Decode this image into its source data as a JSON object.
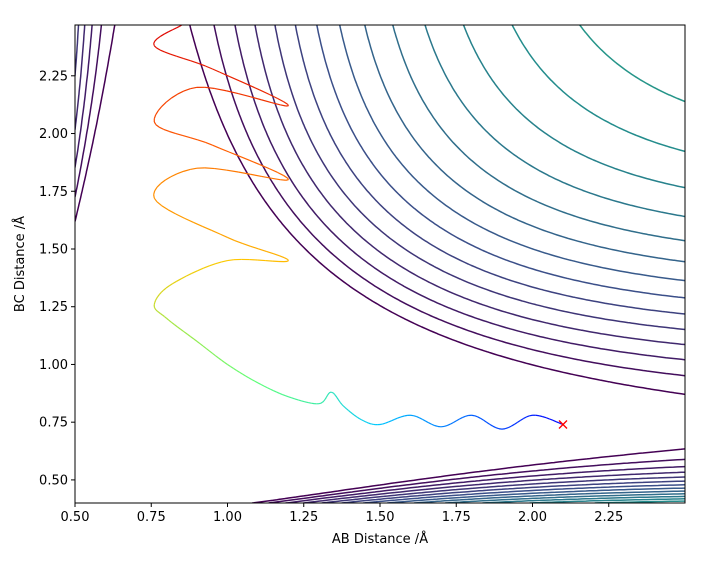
{
  "chart_data": {
    "type": "line",
    "title": "",
    "xlabel": "AB Distance /Å",
    "ylabel": "BC Distance /Å",
    "xlim": [
      0.5,
      2.5
    ],
    "ylim": [
      0.4,
      2.47
    ],
    "xticks": [
      "0.50",
      "0.75",
      "1.00",
      "1.25",
      "1.50",
      "1.75",
      "2.00",
      "2.25"
    ],
    "yticks": [
      "0.50",
      "0.75",
      "1.00",
      "1.25",
      "1.50",
      "1.75",
      "2.00",
      "2.25"
    ],
    "grid": false,
    "legend": "none",
    "contour_levels": 26,
    "colormap": [
      "#440154",
      "#3b528b",
      "#21918c",
      "#5ec962",
      "#fde725"
    ],
    "trajectory": {
      "start": [
        2.1,
        0.74
      ],
      "marker": "x",
      "marker_color": "#ff0000",
      "color_start": "#ff0000",
      "color_end": "#0000ff",
      "points": [
        [
          2.1,
          0.74
        ],
        [
          2.0,
          0.78
        ],
        [
          1.9,
          0.72
        ],
        [
          1.8,
          0.78
        ],
        [
          1.7,
          0.73
        ],
        [
          1.6,
          0.78
        ],
        [
          1.5,
          0.74
        ],
        [
          1.44,
          0.76
        ],
        [
          1.38,
          0.82
        ],
        [
          1.34,
          0.88
        ],
        [
          1.3,
          0.83
        ],
        [
          1.2,
          0.86
        ],
        [
          1.1,
          0.92
        ],
        [
          1.0,
          1.0
        ],
        [
          0.9,
          1.1
        ],
        [
          0.8,
          1.2
        ],
        [
          0.76,
          1.26
        ],
        [
          0.82,
          1.35
        ],
        [
          1.0,
          1.45
        ],
        [
          1.2,
          1.45
        ],
        [
          1.0,
          1.55
        ],
        [
          0.76,
          1.72
        ],
        [
          0.9,
          1.85
        ],
        [
          1.2,
          1.8
        ],
        [
          0.95,
          1.95
        ],
        [
          0.76,
          2.05
        ],
        [
          0.9,
          2.2
        ],
        [
          1.2,
          2.12
        ],
        [
          0.95,
          2.28
        ],
        [
          0.76,
          2.38
        ],
        [
          0.85,
          2.47
        ]
      ]
    }
  }
}
